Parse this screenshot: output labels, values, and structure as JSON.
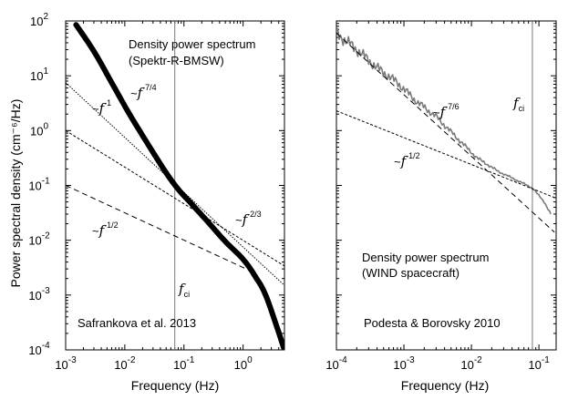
{
  "chart_data": [
    {
      "type": "line",
      "panel": "left",
      "title": "Density power spectrum",
      "subtitle": "(Spektr-R-BMSW)",
      "credit": "Safrankova et al. 2013",
      "xlabel": "Frequency  (Hz)",
      "ylabel": "Power spectral density (cm⁻⁶/Hz)",
      "xscale": "log",
      "yscale": "log",
      "xlim": [
        0.001,
        5
      ],
      "ylim": [
        0.0001,
        100
      ],
      "xticks": [
        {
          "base": "10",
          "exp": "-3"
        },
        {
          "base": "10",
          "exp": "-2"
        },
        {
          "base": "10",
          "exp": "-1"
        },
        {
          "base": "10",
          "exp": "0"
        }
      ],
      "yticks": [
        {
          "base": "10",
          "exp": "-4"
        },
        {
          "base": "10",
          "exp": "-3"
        },
        {
          "base": "10",
          "exp": "-2"
        },
        {
          "base": "10",
          "exp": "-1"
        },
        {
          "base": "10",
          "exp": "0"
        },
        {
          "base": "10",
          "exp": "1"
        },
        {
          "base": "10",
          "exp": "2"
        }
      ],
      "vline": {
        "x": 0.07,
        "label": "f",
        "label_sub": "ci"
      },
      "series": [
        {
          "name": "spectrum",
          "style": "thick-solid",
          "x": [
            0.0015,
            0.003,
            0.006,
            0.012,
            0.025,
            0.05,
            0.08,
            0.13,
            0.25,
            0.5,
            1.0,
            1.6,
            2.5,
            5.0
          ],
          "y": [
            85,
            28,
            7.5,
            2.0,
            0.55,
            0.17,
            0.085,
            0.048,
            0.022,
            0.0095,
            0.0045,
            0.0022,
            0.0009,
            0.0001
          ]
        },
        {
          "name": "~f^-1",
          "style": "dotted",
          "x": [
            0.001,
            5
          ],
          "y": [
            7.5,
            0.0015
          ]
        },
        {
          "name": "~f^-2/3",
          "style": "short-dash",
          "x": [
            0.001,
            5
          ],
          "y": [
            1.0,
            0.0034
          ]
        },
        {
          "name": "~f^-1/2",
          "style": "long-dash",
          "x": [
            0.001,
            1.2
          ],
          "y": [
            0.1,
            0.0029
          ]
        }
      ],
      "annotations": [
        {
          "prefix": "~",
          "base": "f",
          "exp": "-7/4"
        },
        {
          "prefix": "~",
          "base": "f",
          "exp": "-1"
        },
        {
          "prefix": "~",
          "base": "f",
          "exp": "-2/3"
        },
        {
          "prefix": "~",
          "base": "f",
          "exp": "-1/2"
        }
      ]
    },
    {
      "type": "line",
      "panel": "right",
      "title": "Density power spectrum",
      "subtitle": "(WIND spacecraft)",
      "credit": "Podesta & Borovsky 2010",
      "xlabel": "Frequency  (Hz)",
      "xscale": "log",
      "yscale": "log",
      "xlim": [
        0.0001,
        0.18
      ],
      "xticks": [
        {
          "base": "10",
          "exp": "-4"
        },
        {
          "base": "10",
          "exp": "-3"
        },
        {
          "base": "10",
          "exp": "-2"
        },
        {
          "base": "10",
          "exp": "-1"
        }
      ],
      "vline": {
        "x": 0.08,
        "label": "f",
        "label_sub": "ci"
      },
      "series": [
        {
          "name": "spectrum",
          "style": "gray-noisy",
          "x": [
            0.0001,
            0.0002,
            0.0004,
            0.0008,
            0.0015,
            0.003,
            0.006,
            0.012,
            0.025,
            0.05,
            0.08,
            0.12,
            0.15
          ],
          "y": [
            60,
            30,
            14,
            7.5,
            3.5,
            1.8,
            0.75,
            0.32,
            0.18,
            0.12,
            0.09,
            0.05,
            0.03
          ]
        },
        {
          "name": "~f^-7/6",
          "style": "long-dash",
          "x": [
            0.0001,
            0.17
          ],
          "y": [
            60,
            0.014
          ]
        },
        {
          "name": "~f^-1/2",
          "style": "short-dash",
          "x": [
            0.0001,
            0.17
          ],
          "y": [
            2.3,
            0.06
          ]
        }
      ],
      "annotations": [
        {
          "prefix": "~",
          "base": "f",
          "exp": "-7/6"
        },
        {
          "prefix": "~",
          "base": "f",
          "exp": "-1/2"
        }
      ]
    }
  ]
}
